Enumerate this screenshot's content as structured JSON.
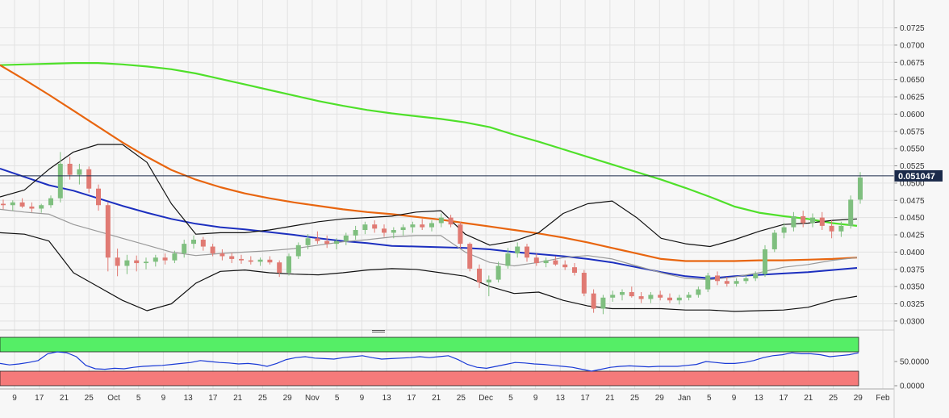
{
  "colors": {
    "background": "#f7f7f7",
    "grid": "#e2e2e2",
    "candle_up": "#7fbf7f",
    "candle_down": "#e07a73",
    "sma_fast": "#1c2fbf",
    "sma_slow": "#7b8cf0",
    "sma_100": "#e8650f",
    "sma_200": "#4fe02a",
    "bollinger": "#111111",
    "bollinger_mid": "#999999",
    "rsi_line": "#1a3ad6",
    "rsi_overbought": "#55ee66",
    "rsi_oversold": "#f57a7a",
    "price_tag": "#1b2a4a"
  },
  "chart_data": [
    {
      "type": "candlestick",
      "y_ticks": [
        "0.0725",
        "0.0700",
        "0.0675",
        "0.0650",
        "0.0625",
        "0.0600",
        "0.0575",
        "0.0550",
        "0.0525",
        "0.0500",
        "0.0475",
        "0.0450",
        "0.0425",
        "0.0400",
        "0.0375",
        "0.0350",
        "0.0325",
        "0.0300"
      ],
      "ylim": [
        0.0294,
        0.0742
      ],
      "x_ticks": [
        "9",
        "17",
        "21",
        "25",
        "Oct",
        "5",
        "9",
        "13",
        "17",
        "21",
        "25",
        "29",
        "Nov",
        "5",
        "9",
        "13",
        "17",
        "21",
        "25",
        "Dec",
        "5",
        "9",
        "13",
        "17",
        "21",
        "25",
        "29",
        "Jan",
        "5",
        "9",
        "13",
        "17",
        "21",
        "25",
        "29",
        "Feb"
      ],
      "current_price": 0.051047,
      "current_price_label": "0.051047",
      "candles": [
        [
          0.047,
          0.0476,
          0.0462,
          0.0468
        ],
        [
          0.0468,
          0.0475,
          0.046,
          0.0472
        ],
        [
          0.0472,
          0.0478,
          0.0464,
          0.0466
        ],
        [
          0.0466,
          0.0472,
          0.0458,
          0.0463
        ],
        [
          0.0463,
          0.047,
          0.0457,
          0.0468
        ],
        [
          0.0468,
          0.0482,
          0.0464,
          0.0478
        ],
        [
          0.0478,
          0.0545,
          0.0472,
          0.0528
        ],
        [
          0.0528,
          0.0538,
          0.0505,
          0.0512
        ],
        [
          0.0512,
          0.0528,
          0.0498,
          0.052
        ],
        [
          0.052,
          0.0524,
          0.0486,
          0.0492
        ],
        [
          0.0492,
          0.0498,
          0.046,
          0.0468
        ],
        [
          0.0468,
          0.0472,
          0.0372,
          0.0392
        ],
        [
          0.0392,
          0.0405,
          0.0365,
          0.038
        ],
        [
          0.038,
          0.0396,
          0.0368,
          0.0388
        ],
        [
          0.0388,
          0.0395,
          0.0372,
          0.0384
        ],
        [
          0.0384,
          0.0392,
          0.0375,
          0.0386
        ],
        [
          0.0386,
          0.0396,
          0.0379,
          0.0392
        ],
        [
          0.0392,
          0.0398,
          0.0382,
          0.0388
        ],
        [
          0.0388,
          0.0402,
          0.0384,
          0.0398
        ],
        [
          0.0398,
          0.0418,
          0.0392,
          0.0412
        ],
        [
          0.0412,
          0.0424,
          0.0405,
          0.0418
        ],
        [
          0.0418,
          0.0422,
          0.0402,
          0.0408
        ],
        [
          0.0408,
          0.0412,
          0.0394,
          0.0398
        ],
        [
          0.0398,
          0.0404,
          0.0388,
          0.0394
        ],
        [
          0.0394,
          0.0399,
          0.0384,
          0.039
        ],
        [
          0.039,
          0.0396,
          0.0383,
          0.0388
        ],
        [
          0.0388,
          0.0394,
          0.0382,
          0.0386
        ],
        [
          0.0386,
          0.0392,
          0.038,
          0.0389
        ],
        [
          0.0389,
          0.0394,
          0.0382,
          0.0385
        ],
        [
          0.0385,
          0.0388,
          0.0364,
          0.037
        ],
        [
          0.037,
          0.0398,
          0.0366,
          0.0394
        ],
        [
          0.0394,
          0.0414,
          0.039,
          0.041
        ],
        [
          0.041,
          0.0426,
          0.0404,
          0.042
        ],
        [
          0.042,
          0.043,
          0.0412,
          0.0416
        ],
        [
          0.0416,
          0.0424,
          0.0406,
          0.0412
        ],
        [
          0.0412,
          0.042,
          0.0404,
          0.0416
        ],
        [
          0.0416,
          0.0428,
          0.041,
          0.0424
        ],
        [
          0.0424,
          0.0438,
          0.0418,
          0.0432
        ],
        [
          0.0432,
          0.0444,
          0.0426,
          0.044
        ],
        [
          0.044,
          0.0446,
          0.0428,
          0.0434
        ],
        [
          0.0434,
          0.044,
          0.0422,
          0.0428
        ],
        [
          0.0428,
          0.0436,
          0.042,
          0.0432
        ],
        [
          0.0432,
          0.044,
          0.0424,
          0.0436
        ],
        [
          0.0436,
          0.0444,
          0.0428,
          0.044
        ],
        [
          0.044,
          0.0448,
          0.0432,
          0.0436
        ],
        [
          0.0436,
          0.0446,
          0.043,
          0.0442
        ],
        [
          0.0442,
          0.0456,
          0.0436,
          0.045
        ],
        [
          0.045,
          0.0454,
          0.0436,
          0.044
        ],
        [
          0.044,
          0.0444,
          0.0406,
          0.0412
        ],
        [
          0.0412,
          0.0414,
          0.0372,
          0.0376
        ],
        [
          0.0376,
          0.0382,
          0.0348,
          0.0356
        ],
        [
          0.0356,
          0.0366,
          0.0336,
          0.036
        ],
        [
          0.036,
          0.0386,
          0.0356,
          0.038
        ],
        [
          0.038,
          0.0406,
          0.0376,
          0.0398
        ],
        [
          0.0398,
          0.0414,
          0.0392,
          0.0408
        ],
        [
          0.0408,
          0.0412,
          0.0386,
          0.0392
        ],
        [
          0.0392,
          0.0398,
          0.038,
          0.0384
        ],
        [
          0.0384,
          0.0392,
          0.0378,
          0.0388
        ],
        [
          0.0388,
          0.0394,
          0.038,
          0.0382
        ],
        [
          0.0382,
          0.0388,
          0.0374,
          0.0378
        ],
        [
          0.0378,
          0.0384,
          0.0366,
          0.037
        ],
        [
          0.037,
          0.0374,
          0.0336,
          0.034
        ],
        [
          0.034,
          0.0346,
          0.0312,
          0.0318
        ],
        [
          0.0318,
          0.0338,
          0.031,
          0.0334
        ],
        [
          0.0334,
          0.0344,
          0.0328,
          0.0338
        ],
        [
          0.0338,
          0.0346,
          0.033,
          0.0342
        ],
        [
          0.0342,
          0.035,
          0.0334,
          0.0336
        ],
        [
          0.0336,
          0.0342,
          0.0326,
          0.0332
        ],
        [
          0.0332,
          0.0342,
          0.0326,
          0.0338
        ],
        [
          0.0338,
          0.0344,
          0.033,
          0.0334
        ],
        [
          0.0334,
          0.034,
          0.0326,
          0.033
        ],
        [
          0.033,
          0.0338,
          0.0324,
          0.0334
        ],
        [
          0.0334,
          0.0342,
          0.033,
          0.0338
        ],
        [
          0.0338,
          0.035,
          0.0334,
          0.0346
        ],
        [
          0.0346,
          0.037,
          0.0342,
          0.0366
        ],
        [
          0.0366,
          0.0372,
          0.0352,
          0.0358
        ],
        [
          0.0358,
          0.0364,
          0.035,
          0.0354
        ],
        [
          0.0354,
          0.0362,
          0.035,
          0.0358
        ],
        [
          0.0358,
          0.0366,
          0.0354,
          0.0362
        ],
        [
          0.0362,
          0.0372,
          0.0358,
          0.0368
        ],
        [
          0.0368,
          0.041,
          0.0364,
          0.0404
        ],
        [
          0.0404,
          0.0432,
          0.04,
          0.0428
        ],
        [
          0.0428,
          0.0442,
          0.042,
          0.0436
        ],
        [
          0.0436,
          0.0458,
          0.043,
          0.0452
        ],
        [
          0.0452,
          0.046,
          0.0436,
          0.0442
        ],
        [
          0.0442,
          0.0456,
          0.0436,
          0.045
        ],
        [
          0.045,
          0.0458,
          0.0432,
          0.0438
        ],
        [
          0.0438,
          0.0446,
          0.042,
          0.043
        ],
        [
          0.043,
          0.0444,
          0.0422,
          0.0438
        ],
        [
          0.0438,
          0.0482,
          0.0434,
          0.0476
        ],
        [
          0.0476,
          0.0516,
          0.047,
          0.0508
        ]
      ],
      "series": [
        {
          "color_key": "sma_200",
          "values": [
            0.0671,
            0.0672,
            0.0673,
            0.0674,
            0.0674,
            0.0672,
            0.0669,
            0.0665,
            0.0659,
            0.0651,
            0.0643,
            0.0635,
            0.0627,
            0.0619,
            0.0612,
            0.0606,
            0.0601,
            0.0597,
            0.0593,
            0.0588,
            0.0581,
            0.057,
            0.056,
            0.0549,
            0.0538,
            0.0527,
            0.0516,
            0.0505,
            0.0493,
            0.048,
            0.0466,
            0.0457,
            0.0452,
            0.0448,
            0.0442,
            0.0438
          ]
        },
        {
          "color_key": "sma_100",
          "values": [
            0.0671,
            0.065,
            0.0628,
            0.0605,
            0.0582,
            0.0559,
            0.0538,
            0.0519,
            0.0505,
            0.0494,
            0.0485,
            0.0478,
            0.0472,
            0.0467,
            0.0462,
            0.0458,
            0.0455,
            0.0451,
            0.0447,
            0.0442,
            0.0437,
            0.0432,
            0.0427,
            0.0421,
            0.0414,
            0.0406,
            0.0398,
            0.039,
            0.0387,
            0.0387,
            0.0387,
            0.0388,
            0.0388,
            0.0389,
            0.039,
            0.0392
          ]
        },
        {
          "color_key": "sma_fast",
          "values": [
            0.0521,
            0.0509,
            0.0497,
            0.0489,
            0.0478,
            0.0467,
            0.0457,
            0.0448,
            0.0441,
            0.0436,
            0.0433,
            0.0429,
            0.0425,
            0.042,
            0.0416,
            0.0413,
            0.0409,
            0.0408,
            0.0407,
            0.0406,
            0.0404,
            0.04,
            0.0397,
            0.0394,
            0.039,
            0.0385,
            0.0378,
            0.0371,
            0.0365,
            0.0362,
            0.0365,
            0.0367,
            0.0369,
            0.0371,
            0.0374,
            0.0377
          ]
        },
        {
          "color_key": "bollinger",
          "values": [
            0.048,
            0.049,
            0.052,
            0.0545,
            0.0556,
            0.0556,
            0.053,
            0.047,
            0.0426,
            0.0428,
            0.0428,
            0.0432,
            0.0438,
            0.0444,
            0.0448,
            0.045,
            0.0452,
            0.0458,
            0.046,
            0.0426,
            0.041,
            0.0416,
            0.0428,
            0.0456,
            0.047,
            0.0474,
            0.045,
            0.042,
            0.0412,
            0.0408,
            0.0418,
            0.043,
            0.044,
            0.0442,
            0.0446,
            0.0448
          ]
        },
        {
          "color_key": "bollinger",
          "values": [
            0.0428,
            0.0426,
            0.0416,
            0.037,
            0.035,
            0.033,
            0.0315,
            0.0325,
            0.0355,
            0.0372,
            0.0374,
            0.037,
            0.0368,
            0.0367,
            0.037,
            0.0374,
            0.0376,
            0.0375,
            0.037,
            0.0365,
            0.035,
            0.034,
            0.0342,
            0.033,
            0.0322,
            0.0318,
            0.0318,
            0.0318,
            0.0316,
            0.0316,
            0.0314,
            0.0315,
            0.0316,
            0.032,
            0.033,
            0.0336
          ]
        },
        {
          "color_key": "bollinger_mid",
          "values": [
            0.0462,
            0.0458,
            0.0455,
            0.044,
            0.043,
            0.042,
            0.041,
            0.04,
            0.0395,
            0.0398,
            0.04,
            0.0402,
            0.0405,
            0.041,
            0.0415,
            0.0418,
            0.0422,
            0.0424,
            0.0424,
            0.04,
            0.0385,
            0.038,
            0.0385,
            0.0392,
            0.0395,
            0.039,
            0.038,
            0.037,
            0.0362,
            0.036,
            0.0364,
            0.037,
            0.0378,
            0.0382,
            0.0388,
            0.0392
          ]
        }
      ]
    },
    {
      "type": "line",
      "y_ticks": [
        "50.0000",
        "0.0000"
      ],
      "ylim": [
        0,
        100
      ],
      "overbought_level": 70,
      "oversold_level": 30,
      "series": [
        {
          "color_key": "rsi_line",
          "values": [
            46,
            43,
            45,
            48,
            52,
            66,
            70,
            68,
            60,
            42,
            35,
            34,
            36,
            35,
            38,
            40,
            41,
            42,
            44,
            46,
            48,
            52,
            50,
            48,
            47,
            45,
            46,
            44,
            40,
            46,
            54,
            58,
            60,
            57,
            56,
            55,
            58,
            60,
            62,
            58,
            55,
            56,
            57,
            58,
            60,
            58,
            60,
            62,
            54,
            44,
            38,
            36,
            40,
            44,
            48,
            47,
            45,
            44,
            42,
            40,
            38,
            34,
            30,
            34,
            38,
            40,
            41,
            40,
            39,
            40,
            40,
            40,
            42,
            44,
            50,
            48,
            46,
            46,
            48,
            52,
            58,
            62,
            64,
            68,
            66,
            66,
            64,
            60,
            62,
            64,
            68
          ]
        }
      ]
    }
  ]
}
